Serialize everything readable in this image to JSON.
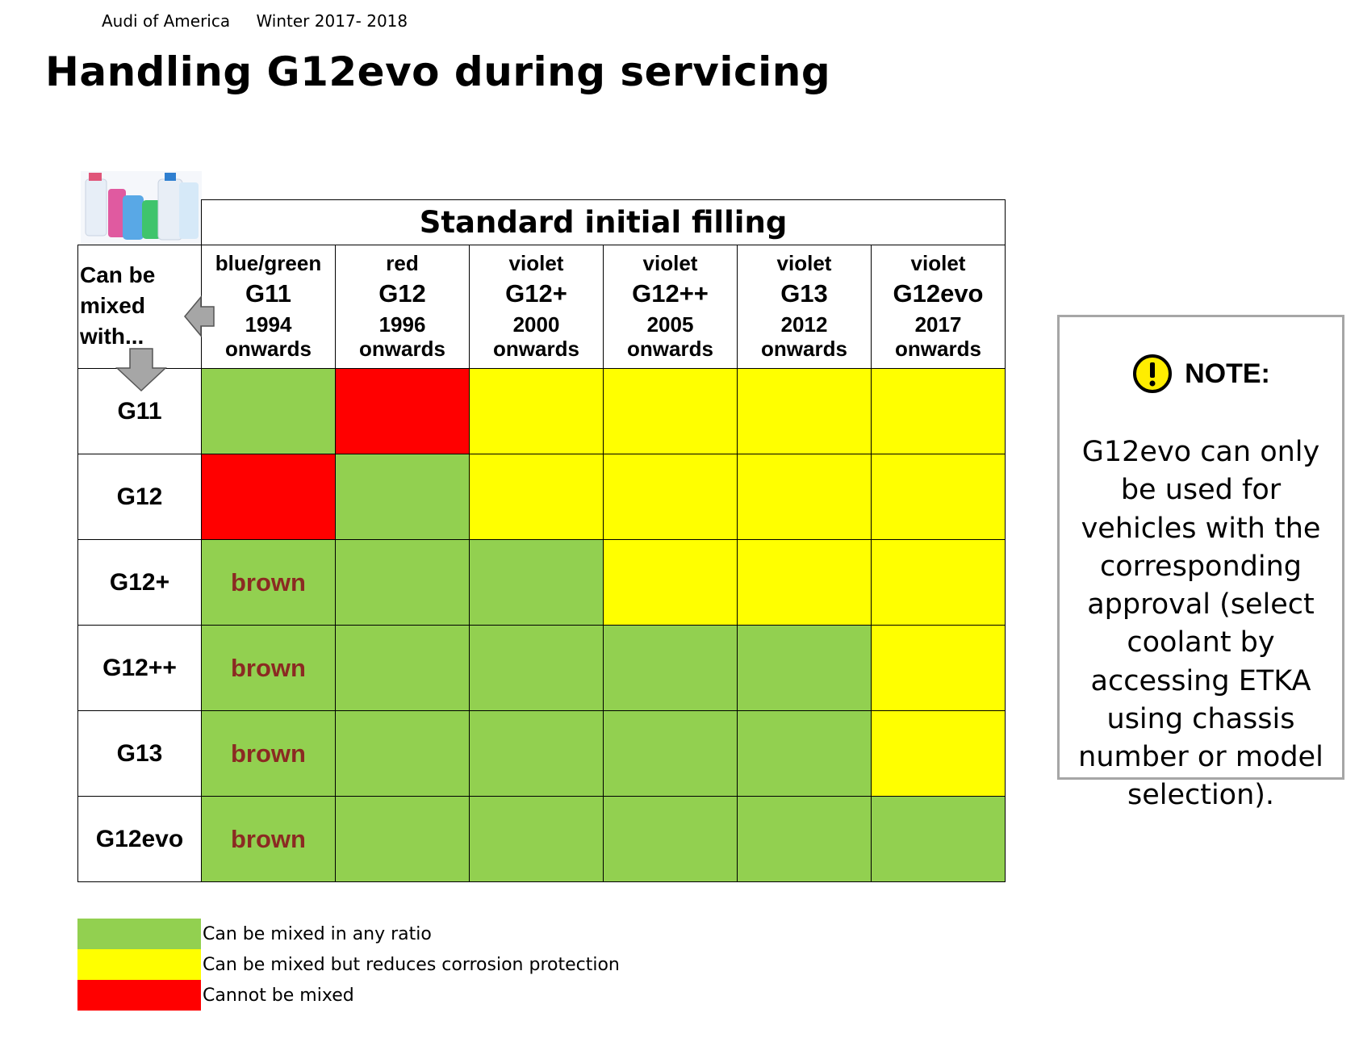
{
  "header": {
    "org": "Audi of America",
    "season": "Winter 2017- 2018",
    "title": "Handling G12evo during servicing"
  },
  "table": {
    "banner": "Standard initial filling",
    "corner_label": "Can be mixed with...",
    "columns": [
      {
        "color": "blue/green",
        "name": "G11",
        "year": "1994",
        "onwards": "onwards"
      },
      {
        "color": "red",
        "name": "G12",
        "year": "1996",
        "onwards": "onwards"
      },
      {
        "color": "violet",
        "name": "G12+",
        "year": "2000",
        "onwards": "onwards"
      },
      {
        "color": "violet",
        "name": "G12++",
        "year": "2005",
        "onwards": "onwards"
      },
      {
        "color": "violet",
        "name": "G13",
        "year": "2012",
        "onwards": "onwards"
      },
      {
        "color": "violet",
        "name": "G12evo",
        "year": "2017",
        "onwards": "onwards"
      }
    ],
    "rows": [
      {
        "name": "G11",
        "cells": [
          {
            "status": "any",
            "text": ""
          },
          {
            "status": "no",
            "text": ""
          },
          {
            "status": "reduced",
            "text": ""
          },
          {
            "status": "reduced",
            "text": ""
          },
          {
            "status": "reduced",
            "text": ""
          },
          {
            "status": "reduced",
            "text": ""
          }
        ]
      },
      {
        "name": "G12",
        "cells": [
          {
            "status": "no",
            "text": ""
          },
          {
            "status": "any",
            "text": ""
          },
          {
            "status": "reduced",
            "text": ""
          },
          {
            "status": "reduced",
            "text": ""
          },
          {
            "status": "reduced",
            "text": ""
          },
          {
            "status": "reduced",
            "text": ""
          }
        ]
      },
      {
        "name": "G12+",
        "cells": [
          {
            "status": "any",
            "text": "brown"
          },
          {
            "status": "any",
            "text": ""
          },
          {
            "status": "any",
            "text": ""
          },
          {
            "status": "reduced",
            "text": ""
          },
          {
            "status": "reduced",
            "text": ""
          },
          {
            "status": "reduced",
            "text": ""
          }
        ]
      },
      {
        "name": "G12++",
        "cells": [
          {
            "status": "any",
            "text": "brown"
          },
          {
            "status": "any",
            "text": ""
          },
          {
            "status": "any",
            "text": ""
          },
          {
            "status": "any",
            "text": ""
          },
          {
            "status": "any",
            "text": ""
          },
          {
            "status": "reduced",
            "text": ""
          }
        ]
      },
      {
        "name": "G13",
        "cells": [
          {
            "status": "any",
            "text": "brown"
          },
          {
            "status": "any",
            "text": ""
          },
          {
            "status": "any",
            "text": ""
          },
          {
            "status": "any",
            "text": ""
          },
          {
            "status": "any",
            "text": ""
          },
          {
            "status": "reduced",
            "text": ""
          }
        ]
      },
      {
        "name": "G12evo",
        "cells": [
          {
            "status": "any",
            "text": "brown"
          },
          {
            "status": "any",
            "text": ""
          },
          {
            "status": "any",
            "text": ""
          },
          {
            "status": "any",
            "text": ""
          },
          {
            "status": "any",
            "text": ""
          },
          {
            "status": "any",
            "text": ""
          }
        ]
      }
    ]
  },
  "note": {
    "icon": "exclamation-icon",
    "title": "NOTE:",
    "body": "G12evo can only be used for vehicles with the corresponding approval (select coolant by accessing ETKA using chassis number or model selection)."
  },
  "legend": [
    {
      "status": "any",
      "color": "#92d050",
      "label": "Can be mixed in any ratio"
    },
    {
      "status": "reduced",
      "color": "#ffff00",
      "label": "Can be mixed but reduces corrosion protection"
    },
    {
      "status": "no",
      "color": "#ff0000",
      "label": "Cannot be mixed"
    }
  ],
  "colors": {
    "green": "#92d050",
    "yellow": "#ffff00",
    "red": "#ff0000",
    "brown_text": "#8b2a22"
  }
}
